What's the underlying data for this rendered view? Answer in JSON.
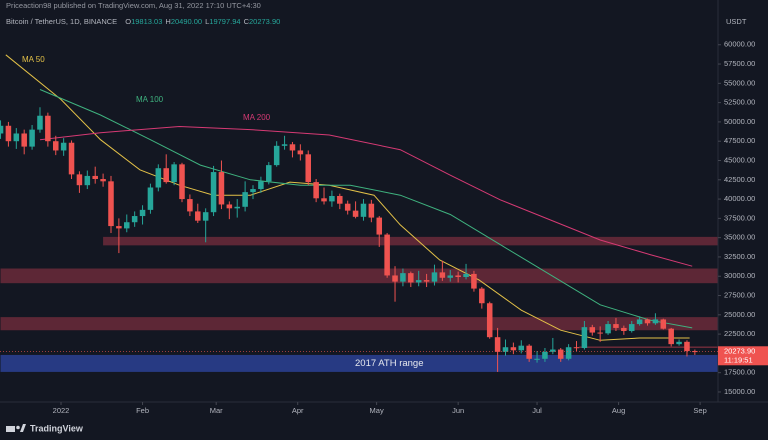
{
  "header": {
    "publisher": "Priceaction98 published on TradingView.com, Aug 31, 2022 17:10 UTC+4:30"
  },
  "footer": {
    "brand": "TradingView"
  },
  "chart_data": {
    "type": "candlestick",
    "symbol": "Bitcoin / TetherUS, 1D, BINANCE",
    "ohlc_legend": [
      {
        "label": "O",
        "value": "19813.03"
      },
      {
        "label": "H",
        "value": "20490.00"
      },
      {
        "label": "L",
        "value": "19797.94"
      },
      {
        "label": "C",
        "value": "20273.90"
      }
    ],
    "unit": "USDT",
    "up_color": "#26a69a",
    "down_color": "#ef5350",
    "x": [
      -23,
      -20,
      -17,
      -14,
      -11,
      -8,
      -5,
      -2,
      1,
      4,
      7,
      10,
      13,
      16,
      19,
      22,
      25,
      28,
      31,
      34,
      37,
      40,
      43,
      46,
      49,
      52,
      55,
      58,
      61,
      64,
      67,
      70,
      73,
      76,
      79,
      82,
      85,
      88,
      91,
      94,
      97,
      100,
      103,
      106,
      109,
      112,
      115,
      118,
      121,
      124,
      127,
      130,
      133,
      136,
      139,
      142,
      145,
      148,
      151,
      154,
      157,
      160,
      163,
      166,
      169,
      172,
      175,
      178,
      181,
      184,
      187,
      190,
      193,
      196,
      199,
      202,
      205,
      208,
      211,
      214,
      217,
      220,
      223,
      226,
      229,
      232,
      235,
      238,
      241
    ],
    "open": [
      48500,
      49500,
      47500,
      48500,
      46800,
      49000,
      50800,
      47500,
      46300,
      47300,
      43200,
      41800,
      43000,
      42600,
      42300,
      36500,
      36200,
      37000,
      37800,
      38600,
      41500,
      44000,
      42200,
      44500,
      40000,
      38400,
      37200,
      38300,
      43500,
      39300,
      38800,
      39000,
      40900,
      41300,
      42300,
      44400,
      46900,
      47100,
      46300,
      45800,
      42200,
      40100,
      39700,
      40400,
      39400,
      38500,
      37700,
      39400,
      37600,
      35400,
      30100,
      29300,
      30400,
      29200,
      29500,
      29300,
      30500,
      29800,
      30100,
      29900,
      30300,
      28400,
      26500,
      22100,
      20200,
      20800,
      20400,
      21000,
      19300,
      19300,
      20200,
      20500,
      19300,
      20800,
      20700,
      23400,
      22700,
      22600,
      23800,
      23300,
      22900,
      23800,
      24400,
      23900,
      24400,
      23200,
      21200,
      21500,
      20300
    ],
    "high": [
      50200,
      50000,
      49200,
      49000,
      49600,
      51900,
      51200,
      48200,
      47900,
      47600,
      43600,
      43700,
      44200,
      43300,
      43000,
      37500,
      38000,
      38400,
      39200,
      42000,
      44500,
      45800,
      44800,
      44700,
      40600,
      39400,
      38800,
      44300,
      45000,
      39700,
      40000,
      42300,
      41800,
      42900,
      44800,
      47500,
      48200,
      47400,
      47100,
      46300,
      42600,
      41500,
      41100,
      40700,
      39800,
      39700,
      40000,
      39900,
      37800,
      35600,
      31300,
      31000,
      30600,
      30700,
      30300,
      31500,
      32000,
      30800,
      30600,
      31600,
      30700,
      28600,
      26700,
      23300,
      21800,
      21400,
      21700,
      21200,
      20300,
      20700,
      22000,
      20700,
      21200,
      21600,
      24200,
      23700,
      23500,
      24200,
      24600,
      23600,
      24200,
      24800,
      24500,
      25200,
      24500,
      23300,
      21800,
      21700,
      20500
    ],
    "low": [
      47800,
      46800,
      46500,
      45800,
      46400,
      48600,
      46800,
      45700,
      45600,
      42600,
      40800,
      41300,
      42000,
      41600,
      35600,
      33000,
      35700,
      36400,
      36700,
      38100,
      41000,
      42000,
      41800,
      39600,
      37800,
      36900,
      34400,
      37800,
      38700,
      37400,
      37600,
      38400,
      40000,
      40800,
      41900,
      44200,
      46400,
      45400,
      45000,
      41800,
      39600,
      39300,
      39000,
      38700,
      38000,
      37500,
      37200,
      37000,
      33800,
      29800,
      26700,
      28700,
      28600,
      28700,
      28600,
      28800,
      29400,
      29300,
      29200,
      29600,
      28000,
      25800,
      21900,
      17600,
      19700,
      19900,
      20000,
      18900,
      18800,
      18900,
      19900,
      18900,
      19100,
      20300,
      20500,
      22300,
      21500,
      22400,
      22900,
      22400,
      22700,
      23600,
      23600,
      23700,
      23100,
      20900,
      21000,
      19600,
      19800
    ],
    "close": [
      49500,
      47500,
      48500,
      46800,
      49000,
      50800,
      47500,
      46300,
      47300,
      43200,
      41800,
      43000,
      42600,
      42300,
      36500,
      36200,
      37000,
      37800,
      38600,
      41500,
      44000,
      42200,
      44500,
      40000,
      38400,
      37200,
      38300,
      43500,
      39300,
      38800,
      39000,
      40900,
      41300,
      42300,
      44400,
      46900,
      47100,
      46300,
      45800,
      42200,
      40100,
      39700,
      40400,
      39400,
      38500,
      37700,
      39400,
      37600,
      35400,
      30100,
      29300,
      30400,
      29200,
      29500,
      29300,
      30500,
      29800,
      30100,
      29900,
      30300,
      28400,
      26500,
      22100,
      20200,
      20800,
      20400,
      21000,
      19300,
      19300,
      20200,
      20500,
      19300,
      20800,
      20700,
      23400,
      22700,
      22600,
      23800,
      23300,
      22900,
      23800,
      24400,
      23900,
      24400,
      23200,
      21200,
      21500,
      20300,
      20274
    ],
    "series": [
      {
        "name": "MA 50",
        "color": "#e3c148",
        "x": [
          -21,
          0,
          15,
          30,
          45,
          58,
          72,
          87,
          102,
          119,
          129,
          144,
          159,
          175,
          190,
          205,
          220,
          239
        ],
        "values": [
          58700,
          52900,
          47700,
          43800,
          41800,
          40500,
          40500,
          42200,
          41800,
          40500,
          36650,
          32100,
          29500,
          25600,
          23000,
          21700,
          22000,
          22000
        ]
      },
      {
        "name": "MA 100",
        "color": "#3fb27f",
        "x": [
          -8,
          15,
          34,
          53,
          72,
          91,
          110,
          129,
          148,
          167,
          186,
          205,
          224,
          240
        ],
        "values": [
          54200,
          50900,
          47700,
          44400,
          42500,
          41800,
          41800,
          40500,
          38000,
          34100,
          30200,
          26300,
          24300,
          23300
        ]
      },
      {
        "name": "MA 200",
        "color": "#d63a74",
        "x": [
          -8,
          15,
          45,
          72,
          102,
          129,
          148,
          167,
          186,
          205,
          224,
          240
        ],
        "values": [
          47700,
          48600,
          49400,
          49000,
          48300,
          46400,
          43100,
          39900,
          37300,
          34700,
          32800,
          31300
        ]
      }
    ],
    "zones": [
      {
        "from": 16,
        "low": 34000,
        "high": 35100,
        "color": "#6b2a3a"
      },
      {
        "from": -23,
        "low": 29100,
        "high": 31000,
        "color": "#6b2a3a"
      },
      {
        "from": -23,
        "low": 23000,
        "high": 24700,
        "color": "#6b2a3a"
      },
      {
        "from": 197,
        "low": 20700,
        "high": 20900,
        "color": "#7a2f3c"
      },
      {
        "from": -23,
        "low": 17600,
        "high": 19800,
        "color": "#2b4194",
        "label": "2017 ATH range"
      }
    ],
    "last_price": {
      "value": 20273.9,
      "label": "20273.90"
    },
    "countdown": "11:19:51",
    "xlim": [
      -23.2,
      249.8
    ],
    "xticks": [
      {
        "value": 0,
        "label": "2022"
      },
      {
        "value": 31,
        "label": "Feb"
      },
      {
        "value": 59,
        "label": "Mar"
      },
      {
        "value": 90,
        "label": "Apr"
      },
      {
        "value": 120,
        "label": "May"
      },
      {
        "value": 151,
        "label": "Jun"
      },
      {
        "value": 181,
        "label": "Jul"
      },
      {
        "value": 212,
        "label": "Aug"
      },
      {
        "value": 243,
        "label": "Sep"
      }
    ],
    "ylim": [
      13700,
      65800
    ],
    "yticks": [
      {
        "value": 15000,
        "label": "15000.00"
      },
      {
        "value": 17500,
        "label": "17500.00"
      },
      {
        "value": 20000,
        "label": "20000.00"
      },
      {
        "value": 22500,
        "label": "22500.00"
      },
      {
        "value": 25000,
        "label": "25000.00"
      },
      {
        "value": 27500,
        "label": "27500.00"
      },
      {
        "value": 30000,
        "label": "30000.00"
      },
      {
        "value": 32500,
        "label": "32500.00"
      },
      {
        "value": 35000,
        "label": "35000.00"
      },
      {
        "value": 37500,
        "label": "37500.00"
      },
      {
        "value": 40000,
        "label": "40000.00"
      },
      {
        "value": 42500,
        "label": "42500.00"
      },
      {
        "value": 45000,
        "label": "45000.00"
      },
      {
        "value": 47500,
        "label": "47500.00"
      },
      {
        "value": 50000,
        "label": "50000.00"
      },
      {
        "value": 52500,
        "label": "52500.00"
      },
      {
        "value": 55000,
        "label": "55000.00"
      },
      {
        "value": 57500,
        "label": "57500.00"
      },
      {
        "value": 60000,
        "label": "60000.00"
      }
    ]
  }
}
